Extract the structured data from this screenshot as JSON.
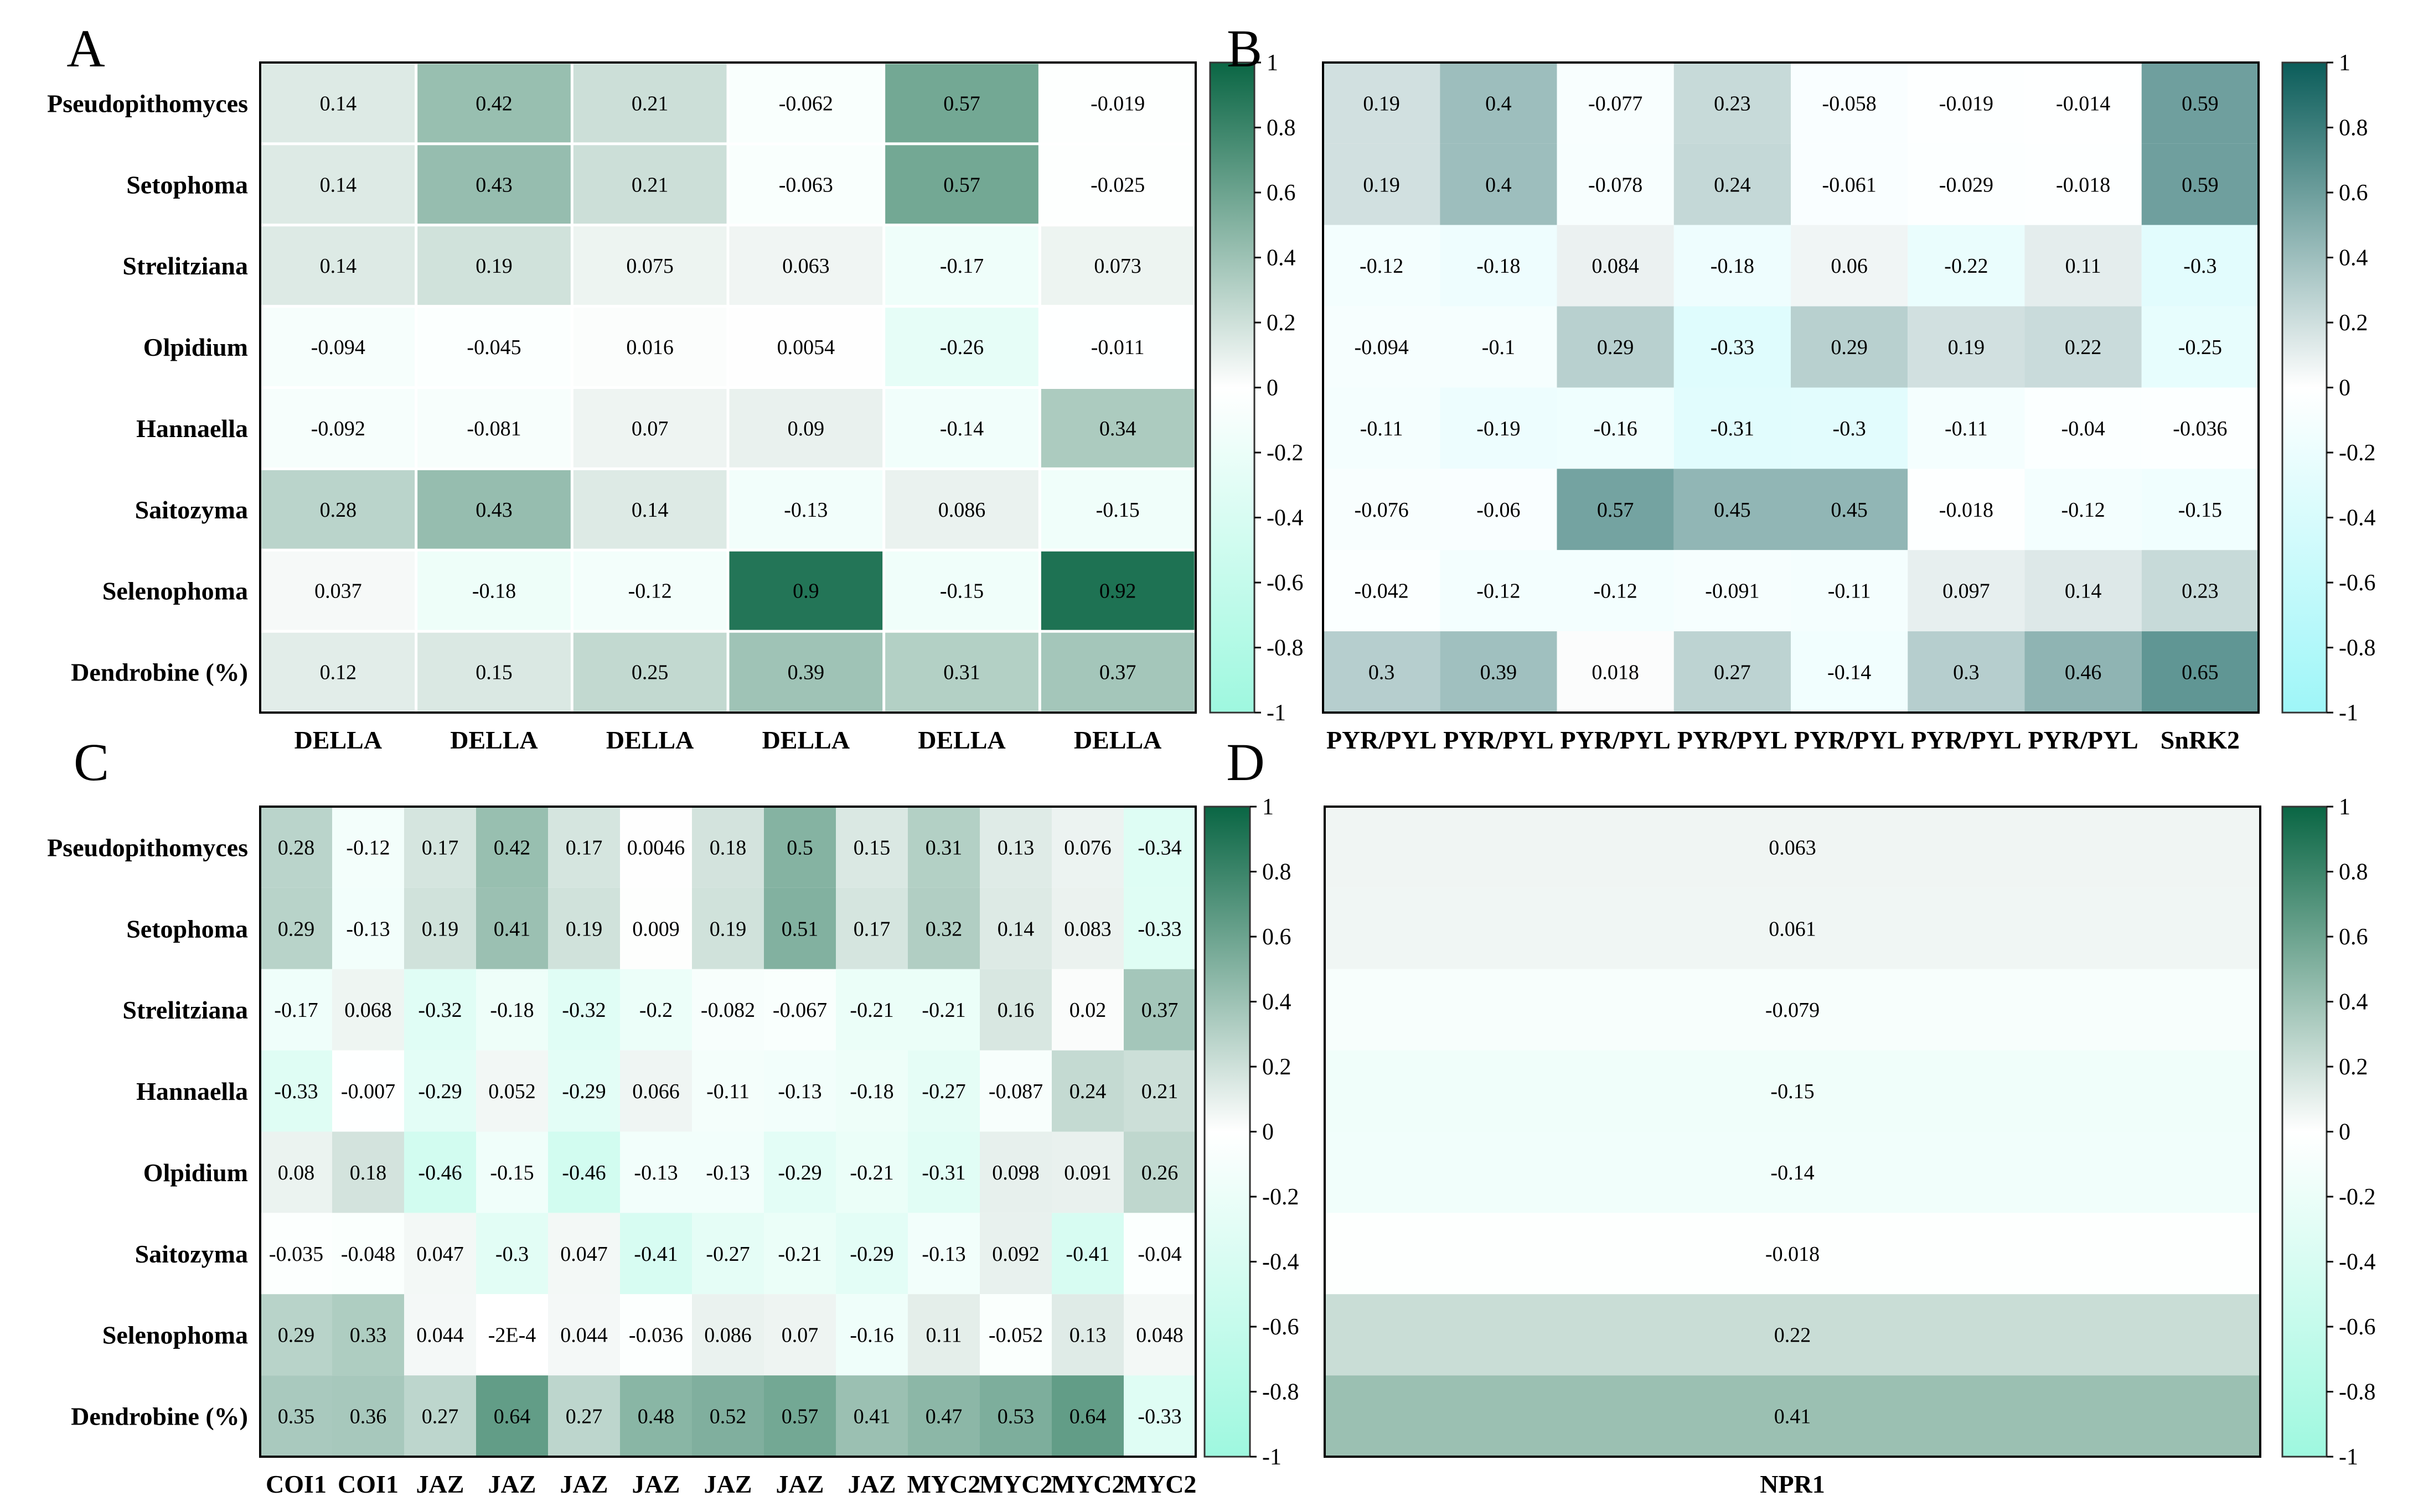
{
  "chart_data": [
    {
      "panel": "A",
      "type": "heatmap",
      "scheme": "della",
      "rows": [
        "Pseudopithomyces",
        "Setophoma",
        "Strelitziana",
        "Olpidium",
        "Hannaella",
        "Saitozyma",
        "Selenophoma",
        "Dendrobine (%)"
      ],
      "columns": [
        "DELLA",
        "DELLA",
        "DELLA",
        "DELLA",
        "DELLA",
        "DELLA"
      ],
      "values": [
        [
          0.14,
          0.42,
          0.21,
          -0.062,
          0.57,
          -0.019
        ],
        [
          0.14,
          0.43,
          0.21,
          -0.063,
          0.57,
          -0.025
        ],
        [
          0.14,
          0.19,
          0.075,
          0.063,
          -0.17,
          0.073
        ],
        [
          -0.094,
          -0.045,
          0.016,
          0.0054,
          -0.26,
          -0.011
        ],
        [
          -0.092,
          -0.081,
          0.07,
          0.09,
          -0.14,
          0.34
        ],
        [
          0.28,
          0.43,
          0.14,
          -0.13,
          0.086,
          -0.15
        ],
        [
          0.037,
          -0.18,
          -0.12,
          0.9,
          -0.15,
          0.92
        ],
        [
          0.12,
          0.15,
          0.25,
          0.39,
          0.31,
          0.37
        ]
      ],
      "labels": [
        [
          "0.14",
          "0.42",
          "0.21",
          "-0.062",
          "0.57",
          "-0.019"
        ],
        [
          "0.14",
          "0.43",
          "0.21",
          "-0.063",
          "0.57",
          "-0.025"
        ],
        [
          "0.14",
          "0.19",
          "0.075",
          "0.063",
          "-0.17",
          "0.073"
        ],
        [
          "-0.094",
          "-0.045",
          "0.016",
          "0.0054",
          "-0.26",
          "-0.011"
        ],
        [
          "-0.092",
          "-0.081",
          "0.07",
          "0.09",
          "-0.14",
          "0.34"
        ],
        [
          "0.28",
          "0.43",
          "0.14",
          "-0.13",
          "0.086",
          "-0.15"
        ],
        [
          "0.037",
          "-0.18",
          "-0.12",
          "0.9",
          "-0.15",
          "0.92"
        ],
        [
          "0.12",
          "0.15",
          "0.25",
          "0.39",
          "0.31",
          "0.37"
        ]
      ],
      "range": [
        -1,
        1
      ],
      "colorbar_ticks": [
        "1",
        "0.8",
        "0.6",
        "0.4",
        "0.2",
        "0",
        "-0.2",
        "-0.4",
        "-0.6",
        "-0.8",
        "-1"
      ]
    },
    {
      "panel": "B",
      "type": "heatmap",
      "scheme": "pyr",
      "rows": [
        "Pseudopithomyces",
        "Setophoma",
        "Strelitziana",
        "Olpidium",
        "Hannaella",
        "Saitozyma",
        "Selenophoma",
        "Dendrobine (%)"
      ],
      "columns": [
        "PYR/PYL",
        "PYR/PYL",
        "PYR/PYL",
        "PYR/PYL",
        "PYR/PYL",
        "PYR/PYL",
        "PYR/PYL",
        "SnRK2"
      ],
      "values": [
        [
          0.19,
          0.4,
          -0.077,
          0.23,
          -0.058,
          -0.019,
          -0.014,
          0.59
        ],
        [
          0.19,
          0.4,
          -0.078,
          0.24,
          -0.061,
          -0.029,
          -0.018,
          0.59
        ],
        [
          -0.12,
          -0.18,
          0.084,
          -0.18,
          0.06,
          -0.22,
          0.11,
          -0.3
        ],
        [
          -0.094,
          -0.1,
          0.29,
          -0.33,
          0.29,
          0.19,
          0.22,
          -0.25
        ],
        [
          -0.11,
          -0.19,
          -0.16,
          -0.31,
          -0.3,
          -0.11,
          -0.04,
          -0.036
        ],
        [
          -0.076,
          -0.06,
          0.57,
          0.45,
          0.45,
          -0.018,
          -0.12,
          -0.15
        ],
        [
          -0.042,
          -0.12,
          -0.12,
          -0.091,
          -0.11,
          0.097,
          0.14,
          0.23
        ],
        [
          0.3,
          0.39,
          0.018,
          0.27,
          -0.14,
          0.3,
          0.46,
          0.65
        ]
      ],
      "labels": [
        [
          "0.19",
          "0.4",
          "-0.077",
          "0.23",
          "-0.058",
          "-0.019",
          "-0.014",
          "0.59"
        ],
        [
          "0.19",
          "0.4",
          "-0.078",
          "0.24",
          "-0.061",
          "-0.029",
          "-0.018",
          "0.59"
        ],
        [
          "-0.12",
          "-0.18",
          "0.084",
          "-0.18",
          "0.06",
          "-0.22",
          "0.11",
          "-0.3"
        ],
        [
          "-0.094",
          "-0.1",
          "0.29",
          "-0.33",
          "0.29",
          "0.19",
          "0.22",
          "-0.25"
        ],
        [
          "-0.11",
          "-0.19",
          "-0.16",
          "-0.31",
          "-0.3",
          "-0.11",
          "-0.04",
          "-0.036"
        ],
        [
          "-0.076",
          "-0.06",
          "0.57",
          "0.45",
          "0.45",
          "-0.018",
          "-0.12",
          "-0.15"
        ],
        [
          "-0.042",
          "-0.12",
          "-0.12",
          "-0.091",
          "-0.11",
          "0.097",
          "0.14",
          "0.23"
        ],
        [
          "0.3",
          "0.39",
          "0.018",
          "0.27",
          "-0.14",
          "0.3",
          "0.46",
          "0.65"
        ]
      ],
      "range": [
        -1,
        1
      ],
      "colorbar_ticks": [
        "1",
        "0.8",
        "0.6",
        "0.4",
        "0.2",
        "0",
        "-0.2",
        "-0.4",
        "-0.6",
        "-0.8",
        "-1"
      ]
    },
    {
      "panel": "C",
      "type": "heatmap",
      "scheme": "della",
      "rows": [
        "Pseudopithomyces",
        "Setophoma",
        "Strelitziana",
        "Hannaella",
        "Olpidium",
        "Saitozyma",
        "Selenophoma",
        "Dendrobine (%)"
      ],
      "columns": [
        "COI1",
        "COI1",
        "JAZ",
        "JAZ",
        "JAZ",
        "JAZ",
        "JAZ",
        "JAZ",
        "JAZ",
        "MYC2",
        "MYC2",
        "MYC2",
        "MYC2"
      ],
      "values": [
        [
          0.28,
          -0.12,
          0.17,
          0.42,
          0.17,
          0.0046,
          0.18,
          0.5,
          0.15,
          0.31,
          0.13,
          0.076,
          -0.34
        ],
        [
          0.29,
          -0.13,
          0.19,
          0.41,
          0.19,
          0.009,
          0.19,
          0.51,
          0.17,
          0.32,
          0.14,
          0.083,
          -0.33
        ],
        [
          -0.17,
          0.068,
          -0.32,
          -0.18,
          -0.32,
          -0.2,
          -0.082,
          -0.067,
          -0.21,
          -0.21,
          0.16,
          0.02,
          0.37
        ],
        [
          -0.33,
          -0.007,
          -0.29,
          0.052,
          -0.29,
          0.066,
          -0.11,
          -0.13,
          -0.18,
          -0.27,
          -0.087,
          0.24,
          0.21
        ],
        [
          0.08,
          0.18,
          -0.46,
          -0.15,
          -0.46,
          -0.13,
          -0.13,
          -0.29,
          -0.21,
          -0.31,
          0.098,
          0.091,
          0.26
        ],
        [
          -0.035,
          -0.048,
          0.047,
          -0.3,
          0.047,
          -0.41,
          -0.27,
          -0.21,
          -0.29,
          -0.13,
          0.092,
          -0.41,
          -0.04
        ],
        [
          0.29,
          0.33,
          0.044,
          -0.0002,
          0.044,
          -0.036,
          0.086,
          0.07,
          -0.16,
          0.11,
          -0.052,
          0.13,
          0.048
        ],
        [
          0.35,
          0.36,
          0.27,
          0.64,
          0.27,
          0.48,
          0.52,
          0.57,
          0.41,
          0.47,
          0.53,
          0.64,
          -0.33
        ]
      ],
      "labels": [
        [
          "0.28",
          "-0.12",
          "0.17",
          "0.42",
          "0.17",
          "0.0046",
          "0.18",
          "0.5",
          "0.15",
          "0.31",
          "0.13",
          "0.076",
          "-0.34"
        ],
        [
          "0.29",
          "-0.13",
          "0.19",
          "0.41",
          "0.19",
          "0.009",
          "0.19",
          "0.51",
          "0.17",
          "0.32",
          "0.14",
          "0.083",
          "-0.33"
        ],
        [
          "-0.17",
          "0.068",
          "-0.32",
          "-0.18",
          "-0.32",
          "-0.2",
          "-0.082",
          "-0.067",
          "-0.21",
          "-0.21",
          "0.16",
          "0.02",
          "0.37"
        ],
        [
          "-0.33",
          "-0.007",
          "-0.29",
          "0.052",
          "-0.29",
          "0.066",
          "-0.11",
          "-0.13",
          "-0.18",
          "-0.27",
          "-0.087",
          "0.24",
          "0.21"
        ],
        [
          "0.08",
          "0.18",
          "-0.46",
          "-0.15",
          "-0.46",
          "-0.13",
          "-0.13",
          "-0.29",
          "-0.21",
          "-0.31",
          "0.098",
          "0.091",
          "0.26"
        ],
        [
          "-0.035",
          "-0.048",
          "0.047",
          "-0.3",
          "0.047",
          "-0.41",
          "-0.27",
          "-0.21",
          "-0.29",
          "-0.13",
          "0.092",
          "-0.41",
          "-0.04"
        ],
        [
          "0.29",
          "0.33",
          "0.044",
          "-2E-4",
          "0.044",
          "-0.036",
          "0.086",
          "0.07",
          "-0.16",
          "0.11",
          "-0.052",
          "0.13",
          "0.048"
        ],
        [
          "0.35",
          "0.36",
          "0.27",
          "0.64",
          "0.27",
          "0.48",
          "0.52",
          "0.57",
          "0.41",
          "0.47",
          "0.53",
          "0.64",
          "-0.33"
        ]
      ],
      "range": [
        -1,
        1
      ],
      "colorbar_ticks": [
        "1",
        "0.8",
        "0.6",
        "0.4",
        "0.2",
        "0",
        "-0.2",
        "-0.4",
        "-0.6",
        "-0.8",
        "-1"
      ]
    },
    {
      "panel": "D",
      "type": "heatmap",
      "scheme": "della",
      "rows": [
        "Pseudopithomyces",
        "Setophoma",
        "Strelitziana",
        "Hannaella",
        "Olpidium",
        "Saitozyma",
        "Selenophoma",
        "Dendrobine (%)"
      ],
      "row_labels_shown": false,
      "columns": [
        "NPR1"
      ],
      "values": [
        [
          0.063
        ],
        [
          0.061
        ],
        [
          -0.079
        ],
        [
          -0.15
        ],
        [
          -0.14
        ],
        [
          -0.018
        ],
        [
          0.22
        ],
        [
          0.41
        ]
      ],
      "labels": [
        [
          "0.063"
        ],
        [
          "0.061"
        ],
        [
          "-0.079"
        ],
        [
          "-0.15"
        ],
        [
          "-0.14"
        ],
        [
          "-0.018"
        ],
        [
          "0.22"
        ],
        [
          "0.41"
        ]
      ],
      "range": [
        -1,
        1
      ],
      "colorbar_ticks": [
        "1",
        "0.8",
        "0.6",
        "0.4",
        "0.2",
        "0",
        "-0.2",
        "-0.4",
        "-0.6",
        "-0.8",
        "-1"
      ]
    }
  ],
  "color_schemes": {
    "della": {
      "positive": "#0a6644",
      "zero": "#ffffff",
      "negative": "#9ef8df"
    },
    "pyr": {
      "positive": "#0b5d5a",
      "zero": "#ffffff",
      "negative": "#9ef6f8"
    }
  }
}
